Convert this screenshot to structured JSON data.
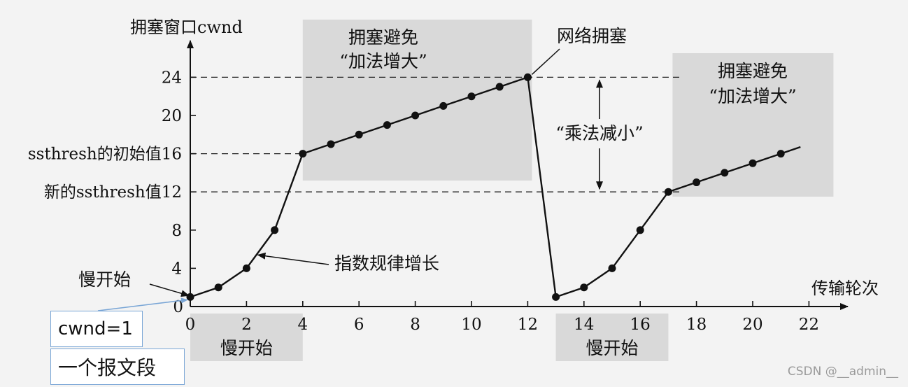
{
  "chart_data": {
    "type": "line",
    "title": "",
    "ylabel": "拥塞窗口cwnd",
    "xlabel": "传输轮次",
    "xlim": [
      0,
      22
    ],
    "ylim": [
      0,
      24
    ],
    "x_ticks": [
      0,
      2,
      4,
      6,
      8,
      10,
      12,
      14,
      16,
      18,
      20,
      22
    ],
    "y_ticks": [
      0,
      4,
      8,
      12,
      16,
      20,
      24
    ],
    "ytick_labels": [
      {
        "value": 16,
        "text": "ssthresh的初始值16"
      },
      {
        "value": 12,
        "text": "新的ssthresh值12"
      }
    ],
    "grid": false,
    "series": [
      {
        "name": "",
        "x": [
          0,
          1,
          2,
          3,
          4,
          5,
          6,
          7,
          8,
          9,
          10,
          11,
          12,
          13,
          14,
          15,
          16,
          17,
          18,
          19,
          20,
          21
        ],
        "y": [
          1,
          2,
          4,
          8,
          16,
          17,
          18,
          19,
          20,
          21,
          22,
          23,
          24,
          1,
          2,
          4,
          8,
          12,
          13,
          14,
          15,
          16
        ],
        "line_extends_to": {
          "x": 21.7,
          "y": 16.7
        }
      }
    ],
    "reference_lines": [
      {
        "y": 24,
        "from_x": 0,
        "to_x": 17.5,
        "style": "dashed"
      },
      {
        "y": 16,
        "from_x": 0,
        "to_x": 4,
        "style": "dashed"
      },
      {
        "y": 12,
        "from_x": 0,
        "to_x": 17.5,
        "style": "dashed"
      }
    ],
    "shaded_regions": [
      {
        "label_lines": [
          "拥塞避免",
          "“加法增大”"
        ],
        "x_from": 4,
        "x_to": 12
      }
    ],
    "bottom_labels": [
      {
        "text": "慢开始",
        "x_from": 0,
        "x_to": 4
      },
      {
        "text": "慢开始",
        "x_from": 13,
        "x_to": 17
      }
    ],
    "annotations": [
      {
        "text": "网络拥塞",
        "at": {
          "x": 12,
          "y": 24
        }
      },
      {
        "text": "“乘法减小”",
        "between_y": [
          12,
          24
        ]
      },
      {
        "text": "指数规律增长",
        "at": {
          "x": 2.4,
          "y": 5.4
        }
      },
      {
        "text": "慢开始",
        "at": {
          "x": 0,
          "y": 1
        }
      }
    ],
    "second_region": {
      "label_lines": [
        "拥塞避免",
        "“加法增大”"
      ]
    }
  },
  "callouts": {
    "cwnd": "cwnd=1",
    "segment": "一个报文段"
  },
  "watermark": "CSDN @__admin__",
  "colors": {
    "background": "#f3f3f3",
    "shade": "#d9d9d9",
    "line": "#111111",
    "callout_border": "#7aa6d6"
  }
}
